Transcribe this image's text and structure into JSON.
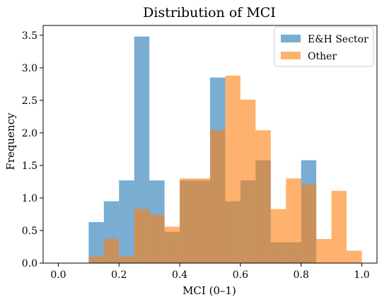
{
  "chart_data": {
    "type": "histogram",
    "title": "Distribution of MCI",
    "xlabel": "MCI (0–1)",
    "ylabel": "Frequency",
    "xlim": [
      -0.05,
      1.05
    ],
    "ylim": [
      0,
      3.65
    ],
    "xticks": [
      0.0,
      0.2,
      0.4,
      0.6,
      0.8,
      1.0
    ],
    "xtick_labels": [
      "0.0",
      "0.2",
      "0.4",
      "0.6",
      "0.8",
      "1.0"
    ],
    "yticks": [
      0.0,
      0.5,
      1.0,
      1.5,
      2.0,
      2.5,
      3.0,
      3.5
    ],
    "ytick_labels": [
      "0.0",
      "0.5",
      "1.0",
      "1.5",
      "2.0",
      "2.5",
      "3.0",
      "3.5"
    ],
    "grid": false,
    "legend_position": "top-right",
    "series": [
      {
        "name": "E&H Sector",
        "color": "#1f77b4",
        "alpha": 0.6,
        "bins": [
          {
            "x0": 0.1,
            "x1": 0.15,
            "value": 0.63
          },
          {
            "x0": 0.15,
            "x1": 0.2,
            "value": 0.95
          },
          {
            "x0": 0.2,
            "x1": 0.25,
            "value": 1.27
          },
          {
            "x0": 0.25,
            "x1": 0.3,
            "value": 3.48
          },
          {
            "x0": 0.3,
            "x1": 0.35,
            "value": 1.27
          },
          {
            "x0": 0.35,
            "x1": 0.4,
            "value": 0.48
          },
          {
            "x0": 0.4,
            "x1": 0.45,
            "value": 1.27
          },
          {
            "x0": 0.45,
            "x1": 0.5,
            "value": 1.27
          },
          {
            "x0": 0.5,
            "x1": 0.55,
            "value": 2.85
          },
          {
            "x0": 0.55,
            "x1": 0.6,
            "value": 0.95
          },
          {
            "x0": 0.6,
            "x1": 0.65,
            "value": 1.27
          },
          {
            "x0": 0.65,
            "x1": 0.7,
            "value": 1.58
          },
          {
            "x0": 0.7,
            "x1": 0.75,
            "value": 0.32
          },
          {
            "x0": 0.75,
            "x1": 0.8,
            "value": 0.32
          },
          {
            "x0": 0.8,
            "x1": 0.85,
            "value": 1.58
          }
        ]
      },
      {
        "name": "Other",
        "color": "#ff7f0e",
        "alpha": 0.6,
        "bins": [
          {
            "x0": 0.1,
            "x1": 0.15,
            "value": 0.1
          },
          {
            "x0": 0.15,
            "x1": 0.2,
            "value": 0.37
          },
          {
            "x0": 0.2,
            "x1": 0.25,
            "value": 0.1
          },
          {
            "x0": 0.25,
            "x1": 0.3,
            "value": 0.83
          },
          {
            "x0": 0.3,
            "x1": 0.35,
            "value": 0.74
          },
          {
            "x0": 0.35,
            "x1": 0.4,
            "value": 0.56
          },
          {
            "x0": 0.4,
            "x1": 0.45,
            "value": 1.3
          },
          {
            "x0": 0.45,
            "x1": 0.5,
            "value": 1.3
          },
          {
            "x0": 0.5,
            "x1": 0.55,
            "value": 2.04
          },
          {
            "x0": 0.55,
            "x1": 0.6,
            "value": 2.88
          },
          {
            "x0": 0.6,
            "x1": 0.65,
            "value": 2.51
          },
          {
            "x0": 0.65,
            "x1": 0.7,
            "value": 2.04
          },
          {
            "x0": 0.7,
            "x1": 0.75,
            "value": 0.83
          },
          {
            "x0": 0.75,
            "x1": 0.8,
            "value": 1.3
          },
          {
            "x0": 0.8,
            "x1": 0.85,
            "value": 1.21
          },
          {
            "x0": 0.85,
            "x1": 0.9,
            "value": 0.37
          },
          {
            "x0": 0.9,
            "x1": 0.95,
            "value": 1.11
          },
          {
            "x0": 0.95,
            "x1": 1.0,
            "value": 0.19
          }
        ]
      }
    ]
  }
}
